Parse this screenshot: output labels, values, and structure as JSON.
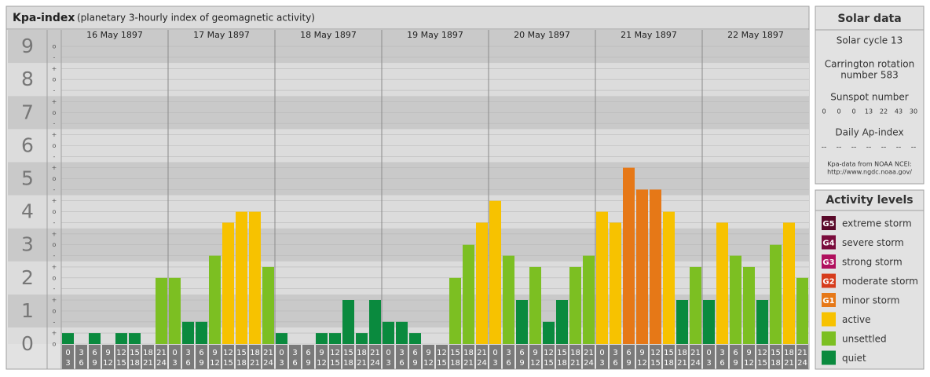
{
  "chart_data": {
    "type": "bar",
    "title": "Kpa-index",
    "subtitle": "(planetary 3-hourly index of geomagnetic activity)",
    "days": [
      "16 May 1897",
      "17 May 1897",
      "18 May 1897",
      "19 May 1897",
      "20 May 1897",
      "21 May 1897",
      "22 May 1897"
    ],
    "hours": [
      [
        "0",
        "3"
      ],
      [
        "3",
        "6"
      ],
      [
        "6",
        "9"
      ],
      [
        "9",
        "12"
      ],
      [
        "12",
        "15"
      ],
      [
        "15",
        "18"
      ],
      [
        "18",
        "21"
      ],
      [
        "21",
        "24"
      ]
    ],
    "values": [
      0.33,
      0,
      0.33,
      0,
      0.33,
      0.33,
      0,
      2,
      2,
      0.67,
      0.67,
      2.67,
      3.67,
      4,
      4,
      2.33,
      0.33,
      0,
      0,
      0.33,
      0.33,
      1.33,
      0.33,
      1.33,
      0.67,
      0.67,
      0.33,
      0,
      0,
      2,
      3,
      3.67,
      4.33,
      2.67,
      1.33,
      2.33,
      0.67,
      1.33,
      2.33,
      2.67,
      4,
      3.67,
      5.33,
      4.67,
      4.67,
      4,
      1.33,
      2.33,
      1.33,
      3.67,
      2.67,
      2.33,
      1.33,
      3,
      3.67,
      2
    ],
    "colors": [
      "#0a8a3e",
      "#0a8a3e",
      "#0a8a3e",
      "#0a8a3e",
      "#0a8a3e",
      "#0a8a3e",
      "#0a8a3e",
      "#7cbf22",
      "#7cbf22",
      "#0a8a3e",
      "#0a8a3e",
      "#7cbf22",
      "#f7c200",
      "#f7c200",
      "#f7c200",
      "#7cbf22",
      "#0a8a3e",
      "#0a8a3e",
      "#0a8a3e",
      "#0a8a3e",
      "#0a8a3e",
      "#0a8a3e",
      "#0a8a3e",
      "#0a8a3e",
      "#0a8a3e",
      "#0a8a3e",
      "#0a8a3e",
      "#0a8a3e",
      "#0a8a3e",
      "#7cbf22",
      "#7cbf22",
      "#f7c200",
      "#f7c200",
      "#7cbf22",
      "#0a8a3e",
      "#7cbf22",
      "#0a8a3e",
      "#0a8a3e",
      "#7cbf22",
      "#7cbf22",
      "#f7c200",
      "#f7c200",
      "#e67817",
      "#e67817",
      "#e67817",
      "#f7c200",
      "#0a8a3e",
      "#7cbf22",
      "#0a8a3e",
      "#f7c200",
      "#7cbf22",
      "#7cbf22",
      "#0a8a3e",
      "#7cbf22",
      "#f7c200",
      "#7cbf22"
    ],
    "ylim": [
      0,
      9.5
    ],
    "yticks": [
      0,
      1,
      2,
      3,
      4,
      5,
      6,
      7,
      8,
      9
    ],
    "minor_ticks": [
      {
        "value": 9,
        "label": "o"
      },
      {
        "value": 8.67,
        "label": "-"
      },
      {
        "value": 8.33,
        "label": "+"
      },
      {
        "value": 8,
        "label": "o"
      },
      {
        "value": 7.67,
        "label": "-"
      },
      {
        "value": 7.33,
        "label": "+"
      },
      {
        "value": 7,
        "label": "o"
      },
      {
        "value": 6.67,
        "label": "-"
      },
      {
        "value": 6.33,
        "label": "+"
      },
      {
        "value": 6,
        "label": "o"
      },
      {
        "value": 5.67,
        "label": "-"
      },
      {
        "value": 5.33,
        "label": "+"
      },
      {
        "value": 5,
        "label": "o"
      },
      {
        "value": 4.67,
        "label": "-"
      },
      {
        "value": 4.33,
        "label": "+"
      },
      {
        "value": 4,
        "label": "o"
      },
      {
        "value": 3.67,
        "label": "-"
      },
      {
        "value": 3.33,
        "label": "+"
      },
      {
        "value": 3,
        "label": "o"
      },
      {
        "value": 2.67,
        "label": "-"
      },
      {
        "value": 2.33,
        "label": "+"
      },
      {
        "value": 2,
        "label": "o"
      },
      {
        "value": 1.67,
        "label": "-"
      },
      {
        "value": 1.33,
        "label": "+"
      },
      {
        "value": 1,
        "label": "o"
      },
      {
        "value": 0.67,
        "label": "-"
      },
      {
        "value": 0.33,
        "label": "+"
      },
      {
        "value": 0,
        "label": "o"
      }
    ],
    "grid": true
  },
  "solar_data": {
    "title": "Solar data",
    "cycle": "Solar cycle 13",
    "carrington": [
      "Carrington rotation",
      "number 583"
    ],
    "sunspot_title": "Sunspot number",
    "sunspots": [
      "0",
      "0",
      "0",
      "13",
      "22",
      "43",
      "30"
    ],
    "ap_title": "Daily Ap-index",
    "ap": [
      "--",
      "--",
      "--",
      "--",
      "--",
      "--",
      "--"
    ],
    "source": [
      "Kpa-data from NOAA NCEI:",
      "http://www.ngdc.noaa.gov/"
    ]
  },
  "activity_levels": {
    "title": "Activity levels",
    "items": [
      {
        "badge": "G5",
        "label": "extreme storm",
        "color": "#5a0a2a"
      },
      {
        "badge": "G4",
        "label": "severe storm",
        "color": "#7a0c3c"
      },
      {
        "badge": "G3",
        "label": "strong storm",
        "color": "#b0105e"
      },
      {
        "badge": "G2",
        "label": "moderate storm",
        "color": "#d63c1c"
      },
      {
        "badge": "G1",
        "label": "minor storm",
        "color": "#e67817"
      },
      {
        "badge": "",
        "label": "active",
        "color": "#f7c200"
      },
      {
        "badge": "",
        "label": "unsettled",
        "color": "#7cbf22"
      },
      {
        "badge": "",
        "label": "quiet",
        "color": "#0a8a3e"
      }
    ]
  }
}
